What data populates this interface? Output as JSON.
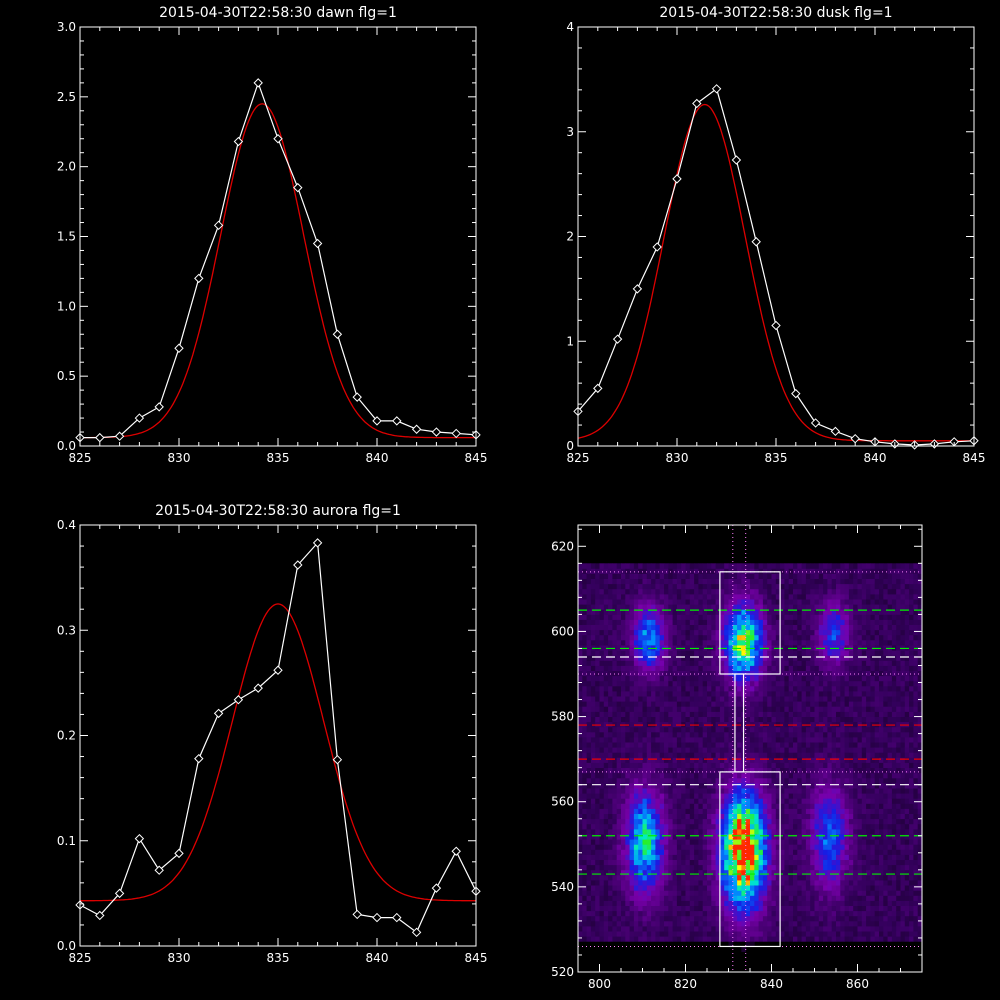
{
  "charts": [
    {
      "type": "line",
      "title": "2015-04-30T22:58:30 dawn flg=1",
      "xlim": [
        825,
        845
      ],
      "ylim": [
        0,
        3.0
      ],
      "xticks": [
        825,
        830,
        835,
        840,
        845
      ],
      "yticks": [
        0.0,
        0.5,
        1.0,
        1.5,
        2.0,
        2.5,
        3.0
      ],
      "ytick_labels": [
        "0.0",
        "0.5",
        "1.0",
        "1.5",
        "2.0",
        "2.5",
        "3.0"
      ],
      "series": [
        {
          "style": "data",
          "color": "#ffffff",
          "x": [
            825,
            826,
            827,
            828,
            829,
            830,
            831,
            832,
            833,
            834,
            835,
            836,
            837,
            838,
            839,
            840,
            841,
            842,
            843,
            844,
            845
          ],
          "y": [
            0.06,
            0.06,
            0.07,
            0.2,
            0.28,
            0.7,
            1.2,
            1.58,
            2.18,
            2.6,
            2.2,
            1.85,
            1.45,
            0.8,
            0.35,
            0.18,
            0.18,
            0.12,
            0.1,
            0.09,
            0.08
          ]
        },
        {
          "style": "fit",
          "color": "#dd0000",
          "gauss": {
            "amp": 2.39,
            "mu": 834.2,
            "sigma": 2.1,
            "base": 0.06
          }
        }
      ]
    },
    {
      "type": "line",
      "title": "2015-04-30T22:58:30 dusk flg=1",
      "xlim": [
        825,
        845
      ],
      "ylim": [
        0,
        4
      ],
      "xticks": [
        825,
        830,
        835,
        840,
        845
      ],
      "yticks": [
        0,
        1,
        2,
        3,
        4
      ],
      "ytick_labels": [
        "0",
        "1",
        "2",
        "3",
        "4"
      ],
      "series": [
        {
          "style": "data",
          "color": "#ffffff",
          "x": [
            825,
            826,
            827,
            828,
            829,
            830,
            831,
            832,
            833,
            834,
            835,
            836,
            837,
            838,
            839,
            840,
            841,
            842,
            843,
            844,
            845
          ],
          "y": [
            0.33,
            0.55,
            1.02,
            1.5,
            1.9,
            2.55,
            3.27,
            3.41,
            2.73,
            1.95,
            1.15,
            0.5,
            0.22,
            0.14,
            0.07,
            0.04,
            0.02,
            0.01,
            0.02,
            0.04,
            0.05
          ]
        },
        {
          "style": "fit",
          "color": "#dd0000",
          "gauss": {
            "amp": 3.21,
            "mu": 831.4,
            "sigma": 2.05,
            "base": 0.05
          }
        }
      ]
    },
    {
      "type": "line",
      "title": "2015-04-30T22:58:30 aurora flg=1",
      "xlim": [
        825,
        845
      ],
      "ylim": [
        0,
        0.4
      ],
      "xticks": [
        825,
        830,
        835,
        840,
        845
      ],
      "yticks": [
        0.0,
        0.1,
        0.2,
        0.3,
        0.4
      ],
      "ytick_labels": [
        "0.0",
        "0.1",
        "0.2",
        "0.3",
        "0.4"
      ],
      "series": [
        {
          "style": "data",
          "color": "#ffffff",
          "x": [
            825,
            826,
            827,
            828,
            829,
            830,
            831,
            832,
            833,
            834,
            835,
            836,
            837,
            838,
            839,
            840,
            841,
            842,
            843,
            844,
            845
          ],
          "y": [
            0.039,
            0.029,
            0.05,
            0.102,
            0.072,
            0.088,
            0.178,
            0.221,
            0.234,
            0.245,
            0.262,
            0.362,
            0.383,
            0.177,
            0.03,
            0.027,
            0.027,
            0.013,
            0.055,
            0.09,
            0.052
          ]
        },
        {
          "style": "fit",
          "color": "#dd0000",
          "gauss": {
            "amp": 0.282,
            "mu": 835.0,
            "sigma": 2.3,
            "base": 0.043
          }
        }
      ]
    },
    {
      "type": "heatmap",
      "title": "",
      "xlim": [
        795,
        875
      ],
      "ylim": [
        520,
        625
      ],
      "xticks": [
        800,
        820,
        840,
        860
      ],
      "yticks": [
        520,
        540,
        560,
        580,
        600,
        620
      ],
      "blobs": [
        {
          "x": 833,
          "y": 548,
          "sx": 3.5,
          "sy": 9,
          "amp": 1.0
        },
        {
          "x": 833,
          "y": 597,
          "sx": 3.0,
          "sy": 6,
          "amp": 0.72
        },
        {
          "x": 810,
          "y": 550,
          "sx": 3.0,
          "sy": 8,
          "amp": 0.58
        },
        {
          "x": 811,
          "y": 598,
          "sx": 2.5,
          "sy": 5,
          "amp": 0.45
        },
        {
          "x": 853,
          "y": 551,
          "sx": 3.0,
          "sy": 8,
          "amp": 0.38
        },
        {
          "x": 854,
          "y": 599,
          "sx": 2.5,
          "sy": 5,
          "amp": 0.33
        }
      ],
      "boxes": [
        {
          "x0": 828,
          "x1": 842,
          "y0": 590,
          "y1": 614
        },
        {
          "x0": 831.5,
          "x1": 833.5,
          "y0": 567,
          "y1": 590
        },
        {
          "x0": 828,
          "x1": 842,
          "y0": 526,
          "y1": 567
        }
      ],
      "dotted_h": {
        "color": "#ff80ff",
        "y": [
          614,
          590,
          567,
          526
        ]
      },
      "dotted_v": {
        "color": "#ff80ff",
        "x": [
          831,
          834
        ]
      },
      "dashed_h": [
        {
          "y": 605,
          "color": "#00ee00"
        },
        {
          "y": 596,
          "color": "#00ee00"
        },
        {
          "y": 594,
          "color": "#ffffff"
        },
        {
          "y": 578,
          "color": "#ee0000"
        },
        {
          "y": 570,
          "color": "#ee0000"
        },
        {
          "y": 564,
          "color": "#ffffff"
        },
        {
          "y": 552,
          "color": "#00ee00"
        },
        {
          "y": 543,
          "color": "#00ee00"
        }
      ]
    }
  ]
}
